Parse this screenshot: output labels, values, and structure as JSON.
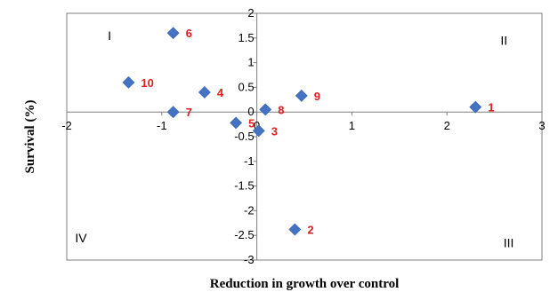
{
  "chart_data": {
    "type": "scatter",
    "xlabel": "Reduction in growth over control",
    "ylabel": "Survival (%)",
    "xlim": [
      -2,
      3
    ],
    "ylim": [
      -3,
      2
    ],
    "x_ticks": [
      "-2",
      "-1",
      "0",
      "1",
      "2",
      "3"
    ],
    "y_ticks": [
      "2",
      "1.5",
      "1",
      "0.5",
      "0",
      "-0.5",
      "-1",
      "-1.5",
      "-2",
      "-2.5",
      "-3"
    ],
    "grid": false,
    "legend": "none",
    "marker_color": "#4472C4",
    "label_color": "#E02020",
    "quadrants": [
      {
        "label": "I",
        "x": -1.55,
        "y": 1.55
      },
      {
        "label": "II",
        "x": 2.6,
        "y": 1.45
      },
      {
        "label": "III",
        "x": 2.65,
        "y": -2.65
      },
      {
        "label": "IV",
        "x": -1.85,
        "y": -2.55
      }
    ],
    "points": [
      {
        "label": "1",
        "x": 2.3,
        "y": 0.1
      },
      {
        "label": "2",
        "x": 0.4,
        "y": -2.38
      },
      {
        "label": "3",
        "x": 0.02,
        "y": -0.38
      },
      {
        "label": "4",
        "x": -0.55,
        "y": 0.4
      },
      {
        "label": "5",
        "x": -0.22,
        "y": -0.22
      },
      {
        "label": "6",
        "x": -0.88,
        "y": 1.6
      },
      {
        "label": "7",
        "x": -0.88,
        "y": 0.0
      },
      {
        "label": "8",
        "x": 0.09,
        "y": 0.05
      },
      {
        "label": "9",
        "x": 0.47,
        "y": 0.33
      },
      {
        "label": "10",
        "x": -1.35,
        "y": 0.6
      }
    ]
  }
}
